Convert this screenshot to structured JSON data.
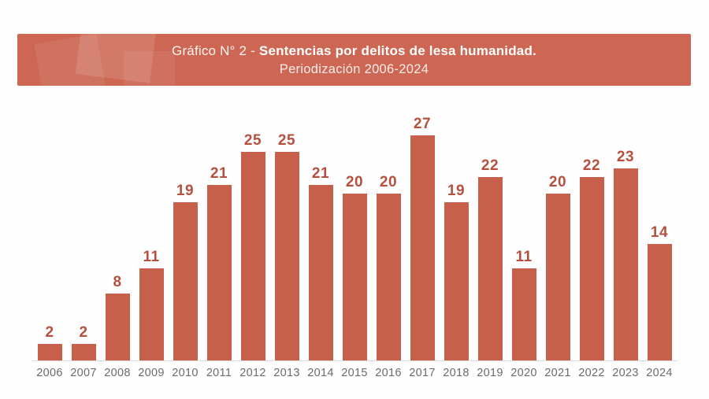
{
  "banner": {
    "title_prefix": "Gráfico N° 2 - ",
    "title_bold": "Sentencias por delitos de lesa humanidad.",
    "subtitle": "Periodización 2006-2024",
    "bg_color": "#cd6753",
    "text_color": "#ffffff"
  },
  "chart_data": {
    "type": "bar",
    "title": "Gráfico N° 2 - Sentencias por delitos de lesa humanidad.",
    "subtitle": "Periodización 2006-2024",
    "categories": [
      "2006",
      "2007",
      "2008",
      "2009",
      "2010",
      "2011",
      "2012",
      "2013",
      "2014",
      "2015",
      "2016",
      "2017",
      "2018",
      "2019",
      "2020",
      "2021",
      "2022",
      "2023",
      "2024"
    ],
    "values": [
      2,
      2,
      8,
      11,
      19,
      21,
      25,
      25,
      21,
      20,
      20,
      27,
      19,
      22,
      11,
      20,
      22,
      23,
      14
    ],
    "ylim": [
      0,
      28
    ],
    "grid": false,
    "legend": false,
    "value_labels_position": "above bars",
    "colors": {
      "bar": "#c7604b",
      "value_label": "#b5503f",
      "category_label": "#6b6b70",
      "axis_line": "#dadada",
      "background": "#fefefe"
    }
  }
}
